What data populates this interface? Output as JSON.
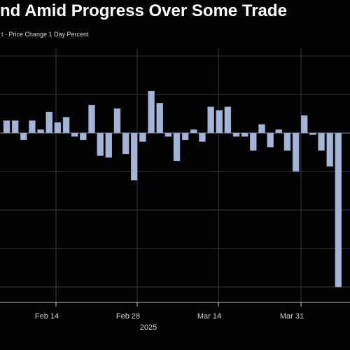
{
  "chart_data": {
    "type": "bar",
    "title": "nd Amid Progress Over Some Trade",
    "subtitle": "t - Price Change 1 Day Percent",
    "x_tick_labels": [
      "Feb 14",
      "Feb 28",
      "Mar 14",
      "Mar 31"
    ],
    "x_year_label": "2025",
    "grid": true,
    "colors": {
      "bar": "#a4b4d6",
      "background": "#000000",
      "grid": "#3a3a3a"
    },
    "values": [
      0.64,
      0.64,
      -0.36,
      0.64,
      0.18,
      1.09,
      0.55,
      0.82,
      -0.18,
      -0.36,
      1.45,
      -1.18,
      -1.27,
      1.27,
      -1.09,
      -2.45,
      -0.45,
      2.18,
      1.55,
      -0.18,
      -1.45,
      -0.36,
      0.18,
      -0.45,
      1.36,
      1.18,
      1.36,
      -0.18,
      -0.18,
      -0.91,
      0.45,
      -0.73,
      0.18,
      -0.91,
      -2.0,
      0.91,
      -0.09,
      -0.91,
      -1.73,
      -8.0
    ]
  }
}
